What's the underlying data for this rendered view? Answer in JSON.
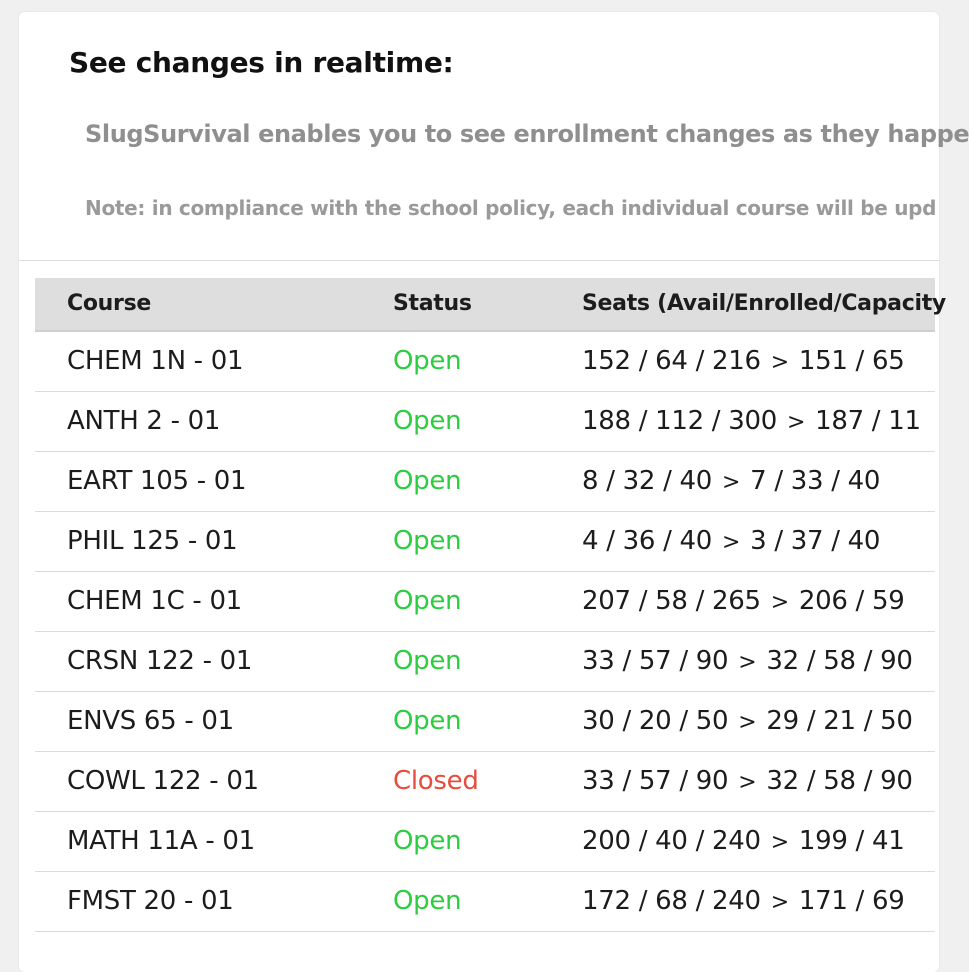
{
  "header": {
    "title": "See changes in realtime:",
    "intro": "SlugSurvival enables you to see enrollment changes as they happe",
    "note": "Note: in compliance with the school policy, each individual course will be upd"
  },
  "table": {
    "columns": {
      "course": "Course",
      "status": "Status",
      "seats": "Seats (Avail/Enrolled/Capacity"
    },
    "arrow": ">",
    "colors": {
      "open": "#2ecc40",
      "closed": "#e74c3c"
    },
    "rows": [
      {
        "course": "CHEM 1N - 01",
        "status": "Open",
        "before": "152 / 64 / 216",
        "after": "151 / 65"
      },
      {
        "course": "ANTH 2 - 01",
        "status": "Open",
        "before": "188 / 112 / 300",
        "after": "187 / 11"
      },
      {
        "course": "EART 105 - 01",
        "status": "Open",
        "before": "8 / 32 / 40",
        "after": "7 / 33 / 40"
      },
      {
        "course": "PHIL 125 - 01",
        "status": "Open",
        "before": "4 / 36 / 40",
        "after": "3 / 37 / 40"
      },
      {
        "course": "CHEM 1C - 01",
        "status": "Open",
        "before": "207 / 58 / 265",
        "after": "206 / 59"
      },
      {
        "course": "CRSN 122 - 01",
        "status": "Open",
        "before": "33 / 57 / 90",
        "after": "32 / 58 / 90"
      },
      {
        "course": "ENVS 65 - 01",
        "status": "Open",
        "before": "30 / 20 / 50",
        "after": "29 / 21 / 50"
      },
      {
        "course": "COWL 122 - 01",
        "status": "Closed",
        "before": "33 / 57 / 90",
        "after": "32 / 58 / 90"
      },
      {
        "course": "MATH 11A - 01",
        "status": "Open",
        "before": "200 / 40 / 240",
        "after": "199 / 41"
      },
      {
        "course": "FMST 20 - 01",
        "status": "Open",
        "before": "172 / 68 / 240",
        "after": "171 / 69"
      }
    ]
  }
}
